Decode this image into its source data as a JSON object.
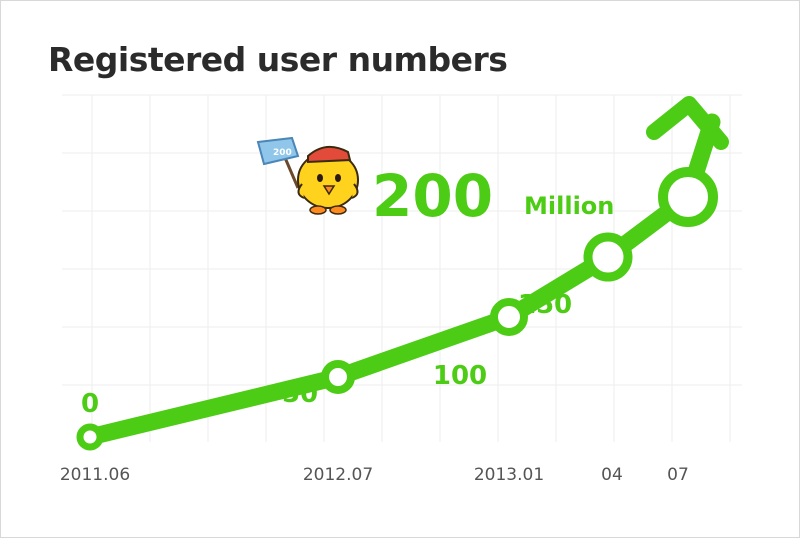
{
  "title": "Registered user numbers",
  "chart_data": {
    "type": "line",
    "title": "Registered user numbers",
    "x": [
      "2011.06",
      "2012.07",
      "2013.01",
      "04",
      "07"
    ],
    "values": [
      0,
      50,
      100,
      150,
      200
    ],
    "data_labels": [
      "0",
      "50",
      "100",
      "150",
      "200"
    ],
    "highlight": {
      "value_label": "200",
      "unit_label": "Million"
    },
    "grid": true,
    "color": "#4ccc14"
  }
}
